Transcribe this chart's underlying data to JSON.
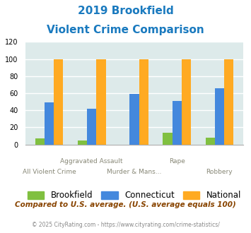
{
  "title_line1": "2019 Brookfield",
  "title_line2": "Violent Crime Comparison",
  "title_color": "#1a7abf",
  "categories": [
    "All Violent Crime",
    "Aggravated Assault",
    "Murder & Mans...",
    "Rape",
    "Robbery"
  ],
  "x_labels_top": [
    "",
    "Aggravated Assault",
    "",
    "Rape",
    ""
  ],
  "x_labels_bot": [
    "All Violent Crime",
    "",
    "Murder & Mans...",
    "",
    "Robbery"
  ],
  "brookfield": [
    7,
    5,
    0,
    14,
    8
  ],
  "connecticut": [
    49,
    42,
    59,
    51,
    66
  ],
  "national": [
    100,
    100,
    100,
    100,
    100
  ],
  "bar_colors": {
    "brookfield": "#80c040",
    "connecticut": "#4488dd",
    "national": "#ffaa22"
  },
  "ylim": [
    0,
    120
  ],
  "yticks": [
    0,
    20,
    40,
    60,
    80,
    100,
    120
  ],
  "background_color": "#ddeaea",
  "grid_color": "#ffffff",
  "legend_labels": [
    "Brookfield",
    "Connecticut",
    "National"
  ],
  "footnote1": "Compared to U.S. average. (U.S. average equals 100)",
  "footnote1_color": "#884400",
  "footnote2": "© 2025 CityRating.com - https://www.cityrating.com/crime-statistics/",
  "footnote2_color": "#888888"
}
